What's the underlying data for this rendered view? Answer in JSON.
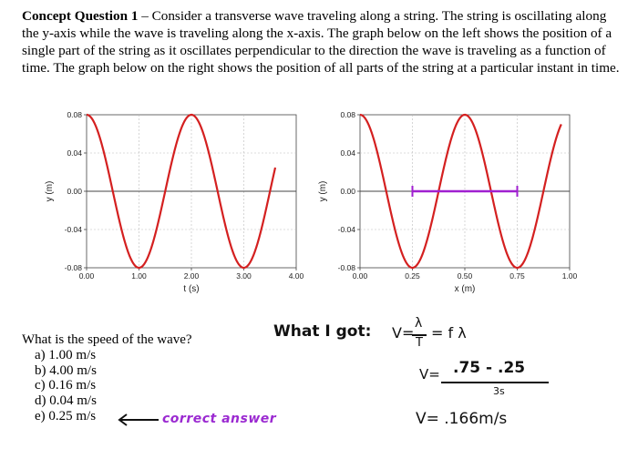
{
  "intro": {
    "heading": "Concept Question 1",
    "dash": " – ",
    "text": "Consider a transverse wave traveling along a string. The string is oscillating along the y-axis while the wave is traveling along the x-axis. The graph below on the left shows the position of a single part of the string as it oscillates perpendicular to the direction the wave is traveling as a function of time. The graph below on the right shows the position of all parts of the string at a particular instant in time."
  },
  "chart_data": [
    {
      "type": "line",
      "title": "",
      "xlabel": "t (s)",
      "ylabel": "y (m)",
      "xlim": [
        0,
        4
      ],
      "ylim": [
        -0.08,
        0.08
      ],
      "xticks": [
        "0.00",
        "1.00",
        "2.00",
        "3.00",
        "4.00"
      ],
      "yticks": [
        "0.08",
        "0.04",
        "0.00",
        "-0.04",
        "-0.08"
      ],
      "grid": true,
      "series": [
        {
          "function": "y = 0.08 cos(2πt/2)",
          "amplitude": 0.08,
          "period": 2,
          "color": "#d42020",
          "x_range": [
            0,
            3.6
          ]
        }
      ]
    },
    {
      "type": "line",
      "title": "",
      "xlabel": "x (m)",
      "ylabel": "y (m)",
      "xlim": [
        0,
        1
      ],
      "ylim": [
        -0.08,
        0.08
      ],
      "xticks": [
        "0.00",
        "0.25",
        "0.50",
        "0.75",
        "1.00"
      ],
      "yticks": [
        "0.08",
        "0.04",
        "0.00",
        "-0.04",
        "-0.08"
      ],
      "grid": true,
      "series": [
        {
          "function": "y = 0.08 cos(2πx/0.5)",
          "amplitude": 0.08,
          "wavelength": 0.5,
          "color": "#d42020",
          "x_range": [
            0,
            0.96
          ]
        }
      ],
      "annotation": {
        "type": "segment",
        "x_start": 0.25,
        "x_end": 0.75,
        "y": 0,
        "color": "#a020d0"
      }
    }
  ],
  "question": {
    "prompt": "What is the speed of the wave?",
    "options": [
      {
        "letter": "a)",
        "text": "1.00 m/s"
      },
      {
        "letter": "b)",
        "text": "4.00 m/s"
      },
      {
        "letter": "c)",
        "text": "0.16 m/s"
      },
      {
        "letter": "d)",
        "text": "0.04 m/s"
      },
      {
        "letter": "e)",
        "text": "0.25 m/s"
      }
    ]
  },
  "handwriting": {
    "correct_note": "correct answer",
    "what_i_got": "What I got:",
    "formula_v": "V=",
    "formula_lambda": "λ",
    "formula_t": "T",
    "formula_rest": "= f λ",
    "line2_v": "V=",
    "line2_num": ".75 - .25",
    "line2_den": "3s",
    "line3": "V= .166m/s"
  },
  "colors": {
    "curve": "#d42020",
    "annotation": "#a020d0",
    "grid": "#bcbcbc"
  }
}
